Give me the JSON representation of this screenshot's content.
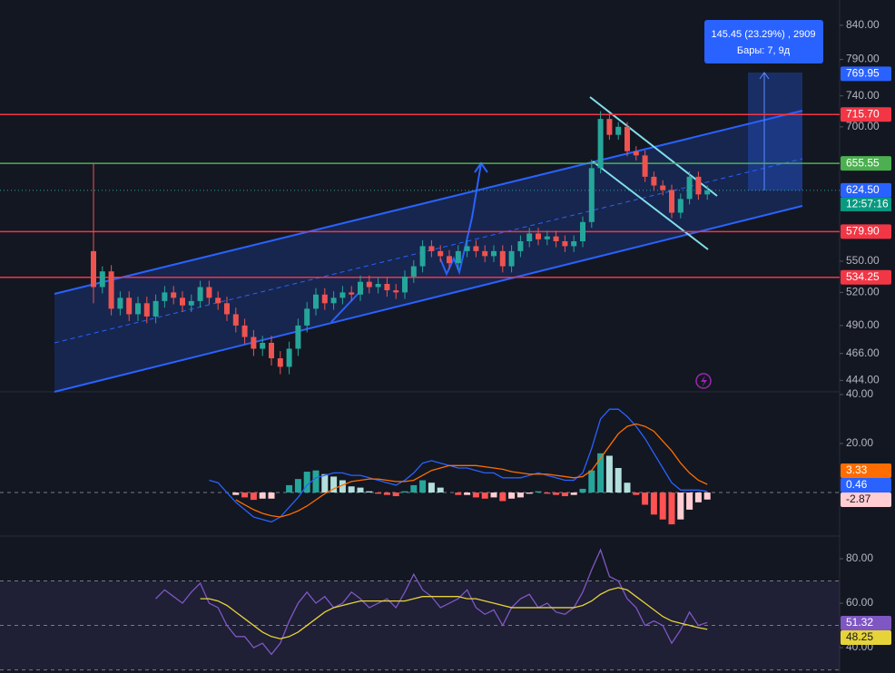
{
  "chart_data": [
    {
      "type": "candlestick",
      "log_scale": true,
      "up_color": "#26a69a",
      "down_color": "#ef5350",
      "ylim": [
        435,
        879
      ],
      "yticks": [
        {
          "value": 444,
          "label": "444.00"
        },
        {
          "value": 466,
          "label": "466.00"
        },
        {
          "value": 490,
          "label": "490.00"
        },
        {
          "value": 520,
          "label": "520.00"
        },
        {
          "value": 550,
          "label": "550.00"
        },
        {
          "value": 700,
          "label": "700.00"
        },
        {
          "value": 740,
          "label": "740.00"
        },
        {
          "value": 790,
          "label": "790.00"
        },
        {
          "value": 840,
          "label": "840.00"
        }
      ],
      "open": [
        560,
        525,
        540,
        505,
        515,
        500,
        510,
        498,
        512,
        520,
        515,
        508,
        512,
        525,
        515,
        510,
        500,
        490,
        480,
        470,
        475,
        462,
        455,
        470,
        490,
        505,
        518,
        510,
        515,
        520,
        518,
        530,
        525,
        528,
        522,
        520,
        535,
        545,
        565,
        560,
        555,
        548,
        560,
        565,
        560,
        555,
        560,
        545,
        560,
        570,
        578,
        572,
        575,
        570,
        565,
        570,
        590,
        650,
        710,
        690,
        700,
        670,
        665,
        640,
        630,
        625,
        600,
        615,
        640,
        620
      ],
      "high": [
        655,
        545,
        546,
        521,
        521,
        516,
        516,
        518,
        526,
        526,
        521,
        518,
        531,
        531,
        521,
        516,
        506,
        496,
        486,
        481,
        481,
        468,
        476,
        496,
        511,
        524,
        524,
        521,
        526,
        526,
        536,
        536,
        534,
        534,
        528,
        541,
        551,
        571,
        571,
        566,
        561,
        566,
        571,
        571,
        566,
        566,
        566,
        566,
        576,
        584,
        584,
        581,
        581,
        576,
        576,
        596,
        660,
        720,
        716,
        706,
        706,
        676,
        671,
        646,
        636,
        631,
        621,
        646,
        646,
        630
      ],
      "low": [
        510,
        519,
        499,
        499,
        494,
        494,
        492,
        492,
        506,
        509,
        502,
        502,
        506,
        509,
        504,
        494,
        484,
        474,
        464,
        464,
        456,
        449,
        449,
        464,
        484,
        499,
        504,
        504,
        509,
        512,
        512,
        519,
        519,
        516,
        514,
        514,
        529,
        539,
        554,
        549,
        542,
        542,
        554,
        554,
        549,
        549,
        539,
        539,
        554,
        564,
        566,
        566,
        564,
        559,
        559,
        564,
        584,
        644,
        684,
        684,
        664,
        659,
        634,
        624,
        619,
        594,
        594,
        609,
        614,
        614
      ],
      "close": [
        525,
        540,
        505,
        515,
        500,
        510,
        498,
        512,
        520,
        515,
        508,
        512,
        525,
        515,
        510,
        500,
        490,
        480,
        470,
        475,
        462,
        455,
        470,
        490,
        505,
        518,
        510,
        515,
        520,
        518,
        530,
        525,
        528,
        522,
        520,
        535,
        545,
        565,
        560,
        555,
        548,
        560,
        565,
        560,
        555,
        560,
        545,
        560,
        570,
        578,
        572,
        575,
        570,
        565,
        570,
        590,
        650,
        710,
        690,
        700,
        670,
        665,
        640,
        630,
        625,
        600,
        615,
        640,
        620,
        624.5
      ],
      "price_lines": [
        {
          "value": 715.7,
          "label": "715.70",
          "color": "#f23645"
        },
        {
          "value": 655.55,
          "label": "655.55",
          "color": "#4caf50"
        },
        {
          "value": 579.9,
          "label": "579.90",
          "color": "#f23645"
        },
        {
          "value": 534.25,
          "label": "534.25",
          "color": "#f23645"
        }
      ],
      "last_price": {
        "value": 624.5,
        "label": "624.50",
        "color": "#2962ff"
      },
      "countdown": "12:57:16",
      "measure_top": {
        "value": 769.95,
        "label": "769.95",
        "color": "#2962ff"
      },
      "annotation": {
        "line1": "145.45 (23.29%) , 2909",
        "line2": "Бары: 7, 9д"
      }
    },
    {
      "type": "macd",
      "ylim": [
        -17.4,
        41.1
      ],
      "yticks": [
        {
          "value": 20,
          "label": "20.00"
        },
        {
          "value": 40,
          "label": "40.00"
        }
      ],
      "levels": [
        0
      ],
      "histogram": {
        "colors": [
          "#26a69a",
          "#b2dfdb",
          "#ff5252",
          "#ffcdd2"
        ],
        "values": [
          null,
          null,
          null,
          null,
          null,
          null,
          null,
          null,
          null,
          null,
          null,
          null,
          null,
          null,
          null,
          null,
          -1,
          -2,
          -3,
          -2.5,
          -2.5,
          0,
          3,
          5.5,
          8.5,
          9,
          7.5,
          6.5,
          5,
          2.5,
          2,
          0.5,
          -0.5,
          -1,
          -1.5,
          0.5,
          3,
          5,
          4,
          2,
          0,
          -1,
          -1,
          -2,
          -2.5,
          -2,
          -3.5,
          -2.5,
          -2,
          -0.5,
          0.5,
          -0.5,
          -1,
          -1.5,
          -1,
          1.5,
          9,
          16,
          15,
          10,
          4,
          -1,
          -5,
          -9,
          -11,
          -13,
          -11,
          -7,
          -4,
          -2.87
        ]
      },
      "series": [
        {
          "color": "#2962ff",
          "values": [
            null,
            null,
            null,
            null,
            null,
            null,
            null,
            null,
            null,
            null,
            null,
            null,
            null,
            5,
            4,
            0,
            -4,
            -7,
            -10,
            -11,
            -12,
            -10,
            -6,
            -2,
            3,
            6,
            7,
            8,
            8,
            7,
            7,
            6,
            5,
            4,
            3,
            5,
            8,
            12,
            13,
            12,
            11,
            10,
            10,
            9,
            8,
            8,
            6,
            6,
            6,
            7,
            8,
            7,
            6,
            5,
            5,
            8,
            18,
            30,
            34,
            34,
            31,
            27,
            22,
            16,
            10,
            4,
            1,
            1,
            1,
            0.46
          ]
        },
        {
          "color": "#ff6d00",
          "values": [
            null,
            null,
            null,
            null,
            null,
            null,
            null,
            null,
            null,
            null,
            null,
            null,
            null,
            null,
            null,
            null,
            -3,
            -5,
            -7,
            -8.5,
            -9.5,
            -10,
            -9,
            -7.5,
            -5.5,
            -3,
            -0.5,
            1.5,
            3,
            4.5,
            5,
            5.5,
            5.5,
            5,
            4.5,
            4.5,
            5,
            7,
            9,
            10,
            11,
            11,
            11,
            11,
            10.5,
            10,
            9.5,
            8.5,
            8,
            7.5,
            7.5,
            7.5,
            7,
            6.5,
            6,
            6.5,
            9,
            14,
            19,
            24,
            27,
            28,
            27,
            25,
            21,
            17,
            12,
            8,
            5,
            3.33
          ]
        }
      ]
    },
    {
      "type": "rsi",
      "ylim": [
        28.6,
        89.8
      ],
      "yticks": [
        {
          "value": 40,
          "label": "40.00"
        },
        {
          "value": 60,
          "label": "60.00"
        },
        {
          "value": 80,
          "label": "80.00"
        }
      ],
      "levels": [
        70,
        50,
        30
      ],
      "band": [
        30,
        70
      ],
      "series": [
        {
          "color": "#7e57c2",
          "values": [
            null,
            null,
            null,
            null,
            null,
            null,
            null,
            62,
            66,
            63,
            60,
            65,
            69,
            60,
            58,
            50,
            45,
            45,
            40,
            42,
            37,
            42,
            52,
            60,
            65,
            60,
            63,
            58,
            60,
            65,
            62,
            58,
            60,
            62,
            58,
            65,
            73,
            66,
            63,
            58,
            60,
            62,
            66,
            58,
            55,
            57,
            50,
            58,
            62,
            64,
            58,
            60,
            56,
            55,
            58,
            65,
            75,
            84,
            72,
            70,
            62,
            58,
            50,
            52,
            50,
            42,
            48,
            56,
            50,
            51.32
          ]
        },
        {
          "color": "#e6d33a",
          "values": [
            null,
            null,
            null,
            null,
            null,
            null,
            null,
            null,
            null,
            null,
            null,
            null,
            62,
            62,
            61,
            59,
            56,
            53,
            50,
            47,
            45,
            44,
            45,
            47,
            50,
            53,
            56,
            58,
            59,
            60,
            61,
            61,
            61,
            61,
            61,
            61,
            62,
            63,
            63,
            63,
            63,
            63,
            62,
            62,
            61,
            60,
            59,
            58,
            58,
            58,
            58,
            58,
            58,
            58,
            58,
            59,
            61,
            64,
            66,
            67,
            66,
            63,
            60,
            57,
            54,
            52,
            51,
            50,
            49,
            48.25
          ]
        }
      ]
    }
  ]
}
